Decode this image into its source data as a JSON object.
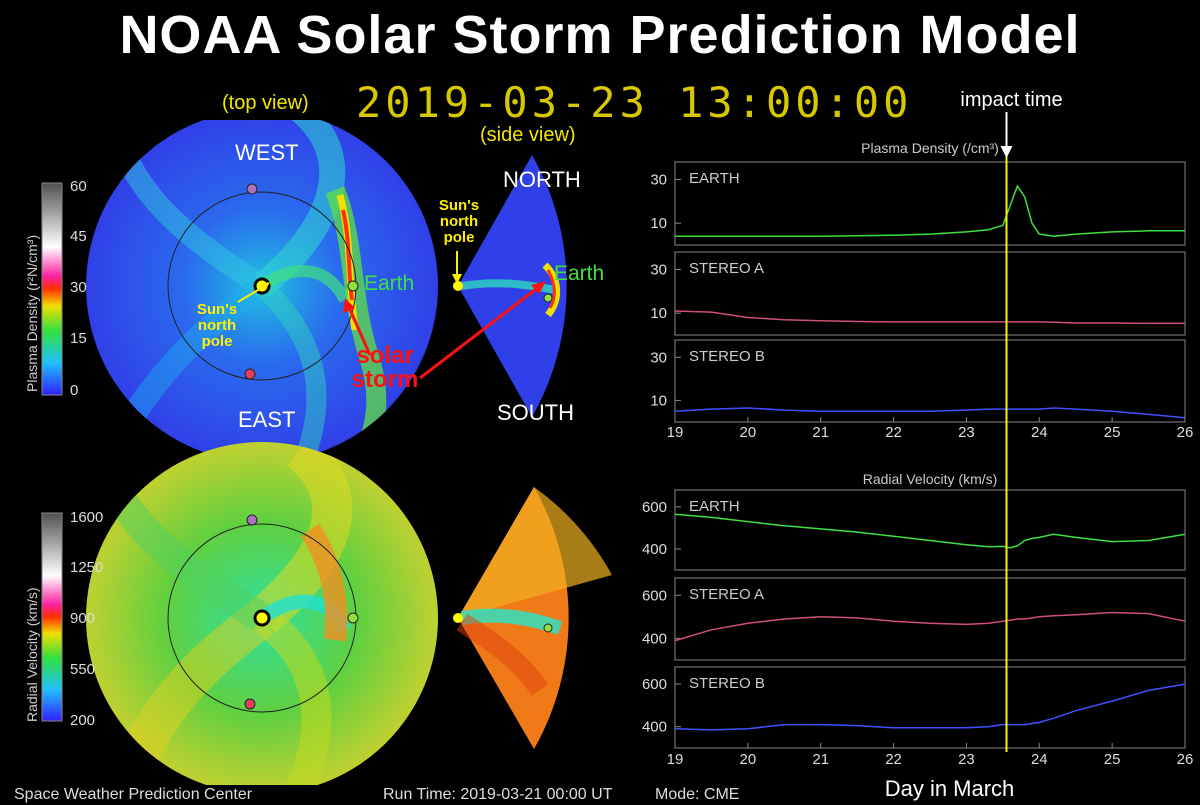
{
  "title": "NOAA Solar Storm Prediction Model",
  "timestamp": "2019-03-23 13:00:00",
  "labels": {
    "top_view": "(top view)",
    "side_view": "(side view)",
    "west": "WEST",
    "east": "EAST",
    "north": "NORTH",
    "south": "SOUTH",
    "earth": "Earth",
    "sun_pole_top": "Sun's\nnorth\npole",
    "sun_pole_side": "Sun's\nnorth\npole",
    "solar_storm": "solar\nstorm",
    "impact_time": "impact time"
  },
  "colorbars": {
    "density": {
      "title": "Plasma Density (r²N/cm³)",
      "ticks": [
        "60",
        "45",
        "30",
        "15",
        "0"
      ]
    },
    "velocity": {
      "title": "Radial Velocity (km/s)",
      "ticks": [
        "1600",
        "1250",
        "900",
        "550",
        "200"
      ]
    }
  },
  "footer": {
    "center": "Space Weather Prediction Center",
    "run_time": "Run Time: 2019-03-21 00:00 UT",
    "mode": "Mode: CME"
  },
  "colors": {
    "earth": "#3ee040",
    "stereo_a": "#d05070",
    "stereo_b": "#4050ff",
    "impact_line": "#f5f500",
    "panel_border": "#888888"
  },
  "chart_data": [
    {
      "type": "line",
      "title": "Plasma Density (/cm³)",
      "xlabel": "Day in March",
      "x": [
        19,
        19.5,
        20,
        20.5,
        21,
        21.5,
        22,
        22.5,
        23,
        23.3,
        23.5,
        23.6,
        23.7,
        23.8,
        23.9,
        24,
        24.2,
        24.5,
        25,
        25.5,
        26
      ],
      "xlim": [
        19,
        26
      ],
      "xticks": [
        "19",
        "20",
        "21",
        "22",
        "23",
        "24",
        "25",
        "26"
      ],
      "impact_x": 23.55,
      "panels": [
        {
          "name": "EARTH",
          "yticks": [
            10,
            30
          ],
          "ylim": [
            0,
            38
          ],
          "values": [
            4,
            4,
            4,
            4,
            4,
            4.2,
            4.5,
            5,
            6,
            7,
            9,
            18,
            27,
            22,
            10,
            5,
            4,
            5,
            6,
            6.5,
            6.5
          ]
        },
        {
          "name": "STEREO A",
          "yticks": [
            10,
            30
          ],
          "ylim": [
            0,
            38
          ],
          "values": [
            11,
            10.5,
            8,
            7,
            6.5,
            6.2,
            6,
            6,
            6,
            6,
            6,
            6,
            6,
            6,
            6,
            6,
            5.8,
            5.5,
            5.5,
            5.3,
            5.3
          ]
        },
        {
          "name": "STEREO B",
          "yticks": [
            10,
            30
          ],
          "ylim": [
            0,
            38
          ],
          "values": [
            5,
            6,
            6.5,
            5.5,
            5,
            5,
            5,
            5,
            5.5,
            6,
            6,
            6,
            6,
            6,
            6,
            6,
            6.5,
            6,
            5,
            3.5,
            2
          ]
        }
      ]
    },
    {
      "type": "line",
      "title": "Radial Velocity (km/s)",
      "xlabel": "Day in March",
      "x": [
        19,
        19.5,
        20,
        20.5,
        21,
        21.5,
        22,
        22.5,
        23,
        23.3,
        23.5,
        23.6,
        23.7,
        23.8,
        23.9,
        24,
        24.2,
        24.5,
        25,
        25.5,
        26
      ],
      "xlim": [
        19,
        26
      ],
      "xticks": [
        "19",
        "20",
        "21",
        "22",
        "23",
        "24",
        "25",
        "26"
      ],
      "impact_x": 23.55,
      "panels": [
        {
          "name": "EARTH",
          "yticks": [
            400,
            600
          ],
          "ylim": [
            300,
            680
          ],
          "values": [
            565,
            550,
            530,
            510,
            495,
            480,
            460,
            440,
            420,
            410,
            412,
            405,
            415,
            440,
            450,
            455,
            470,
            455,
            435,
            440,
            470
          ]
        },
        {
          "name": "STEREO A",
          "yticks": [
            400,
            600
          ],
          "ylim": [
            300,
            680
          ],
          "values": [
            390,
            440,
            470,
            490,
            500,
            495,
            480,
            470,
            465,
            470,
            480,
            485,
            490,
            490,
            495,
            500,
            505,
            510,
            520,
            515,
            480
          ]
        },
        {
          "name": "STEREO B",
          "yticks": [
            400,
            600
          ],
          "ylim": [
            300,
            680
          ],
          "values": [
            390,
            385,
            390,
            410,
            410,
            405,
            395,
            395,
            395,
            400,
            410,
            410,
            410,
            410,
            415,
            420,
            440,
            475,
            520,
            570,
            600
          ]
        }
      ]
    }
  ]
}
